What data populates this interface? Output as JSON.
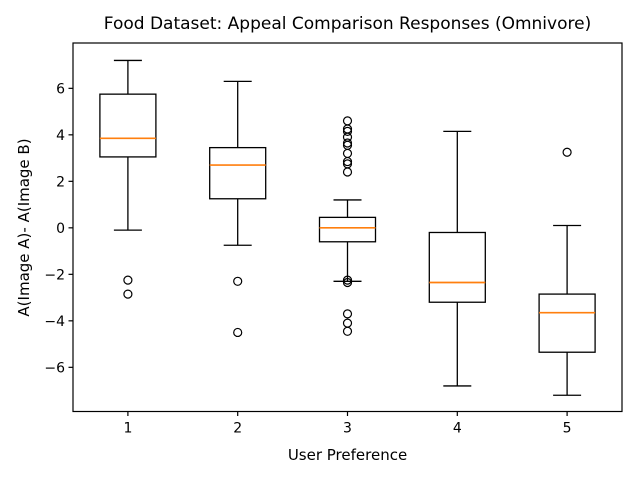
{
  "chart_data": {
    "type": "boxplot",
    "title": "Food Dataset: Appeal Comparison Responses (Omnivore)",
    "xlabel": "User Preference",
    "ylabel": "A(Image A)- A(Image B)",
    "categories": [
      "1",
      "2",
      "3",
      "4",
      "5"
    ],
    "ylim": [
      -7.9,
      7.95
    ],
    "yticks": [
      -6,
      -4,
      -2,
      0,
      2,
      4,
      6
    ],
    "grid": false,
    "legend": "none",
    "colors": {
      "median": "#ff7f0e",
      "box_edge": "#000000",
      "whisker": "#000000",
      "outlier_edge": "#000000",
      "background": "#ffffff"
    },
    "boxes": [
      {
        "category": "1",
        "whisker_low": -0.1,
        "q1": 3.05,
        "median": 3.85,
        "q3": 5.75,
        "whisker_high": 7.2,
        "outliers": [
          -2.25,
          -2.85
        ]
      },
      {
        "category": "2",
        "whisker_low": -0.75,
        "q1": 1.25,
        "median": 2.7,
        "q3": 3.45,
        "whisker_high": 6.3,
        "outliers": [
          -2.3,
          -4.5
        ]
      },
      {
        "category": "3",
        "whisker_low": -2.3,
        "q1": -0.6,
        "median": 0.0,
        "q3": 0.45,
        "whisker_high": 1.2,
        "outliers": [
          4.6,
          4.25,
          4.15,
          3.9,
          3.65,
          3.55,
          3.2,
          2.85,
          2.75,
          2.4,
          -2.25,
          -2.35,
          -3.7,
          -4.1,
          -4.45
        ]
      },
      {
        "category": "4",
        "whisker_low": -6.8,
        "q1": -3.2,
        "median": -2.35,
        "q3": -0.2,
        "whisker_high": 4.15,
        "outliers": []
      },
      {
        "category": "5",
        "whisker_low": -7.2,
        "q1": -5.35,
        "median": -3.65,
        "q3": -2.85,
        "whisker_high": 0.1,
        "outliers": [
          3.25
        ]
      }
    ]
  }
}
